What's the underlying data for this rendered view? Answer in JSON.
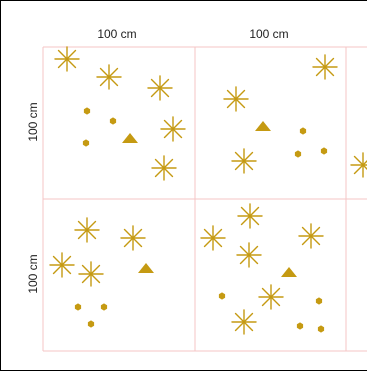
{
  "labels": {
    "top_left": "100 cm",
    "top_right": "100 cm",
    "side_top": "100 cm",
    "side_bottom": "100 cm"
  },
  "colors": {
    "grid": "#f4c5c5",
    "mark": "#c59a12"
  }
}
